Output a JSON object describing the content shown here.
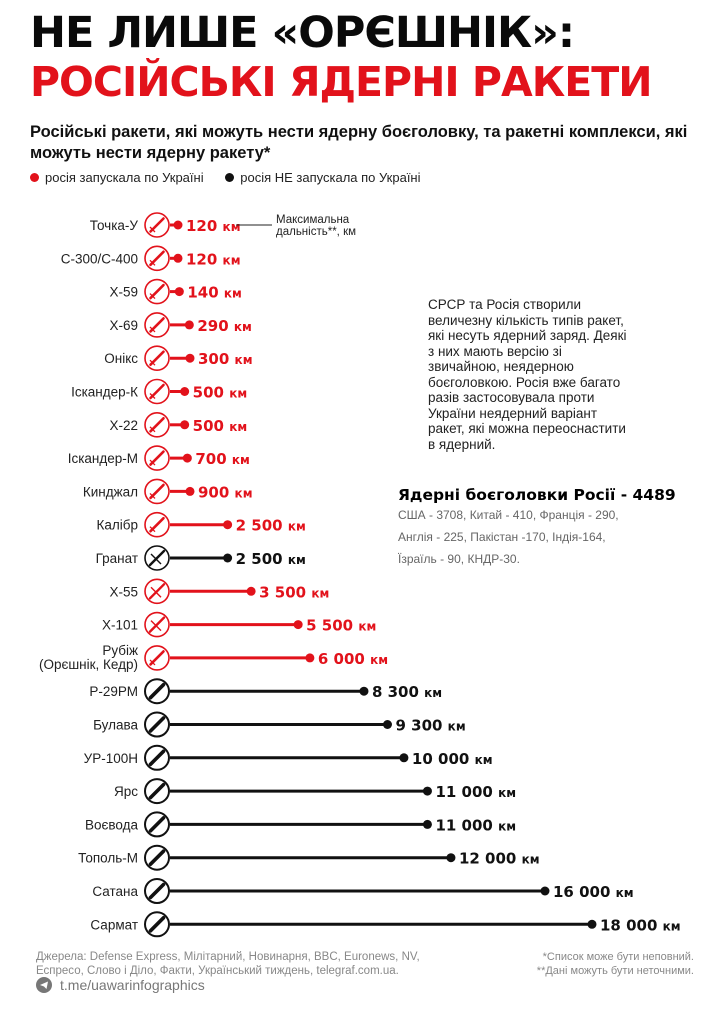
{
  "header": {
    "title_line1": "НЕ ЛИШЕ «ОРЄШНІК»:",
    "title_line2": "РОСІЙСЬКІ ЯДЕРНІ РАКЕТИ",
    "subtitle": "Російські ракети, які можуть нести ядерну боєголовку, та ракетні комплекси, які можуть нести ядерну ракету*"
  },
  "legend": {
    "launched": "росія запускала по Україні",
    "not_launched": "росія НЕ запускала по Україні"
  },
  "colors": {
    "launched": "#e2121b",
    "not_launched": "#111111",
    "muted": "#888888"
  },
  "note": "СРСР та Росія створили величезну кількість типів ракет, які несуть ядерний заряд. Деякі з них мають версію зі звичайною, неядерною боєголовкою. Росія вже багато разів застосовувала проти України неядерний варіант ракет, які можна переоснастити в ядерний.",
  "warheads": {
    "title": "Ядерні боєголовки Росії - 4489",
    "lines": [
      "США - 3708, Китай - 410, Франція - 290,",
      "Англія - 225, Пакістан -170, Індія-164,",
      "Їзраїль - 90,  КНДР-30."
    ]
  },
  "chart_data": {
    "type": "bar",
    "title": "Російські ракети, які можуть нести ядерну боєголовку, та ракетні комплекси, які можуть нести ядерну ракету*",
    "annotation": "Максимальна дальність**, км",
    "unit": "км",
    "xlim": [
      0,
      18000
    ],
    "items": [
      {
        "name": "Точка-У",
        "value": 120,
        "label": "120 км",
        "launched": true,
        "icon": "missile-icon"
      },
      {
        "name": "С-300/С-400",
        "value": 120,
        "label": "120 км",
        "launched": true,
        "icon": "missile-icon"
      },
      {
        "name": "Х-59",
        "value": 140,
        "label": "140 км",
        "launched": true,
        "icon": "missile-icon"
      },
      {
        "name": "Х-69",
        "value": 290,
        "label": "290 км",
        "launched": true,
        "icon": "missile-icon"
      },
      {
        "name": "Онікс",
        "value": 300,
        "label": "300 км",
        "launched": true,
        "icon": "missile-icon"
      },
      {
        "name": "Іскандер-К",
        "value": 500,
        "label": "500 км",
        "launched": true,
        "icon": "missile-icon"
      },
      {
        "name": "Х-22",
        "value": 500,
        "label": "500 км",
        "launched": true,
        "icon": "missile-icon"
      },
      {
        "name": "Іскандер-М",
        "value": 700,
        "label": "700 км",
        "launched": true,
        "icon": "missile-icon"
      },
      {
        "name": "Кинджал",
        "value": 900,
        "label": "900 км",
        "launched": true,
        "icon": "missile-icon"
      },
      {
        "name": "Калібр",
        "value": 2500,
        "label": "2 500 км",
        "launched": true,
        "icon": "missile-icon"
      },
      {
        "name": "Гранат",
        "value": 2500,
        "label": "2 500 км",
        "launched": false,
        "icon": "cruise-missile-icon"
      },
      {
        "name": "Х-55",
        "value": 3500,
        "label": "3 500 км",
        "launched": true,
        "icon": "cruise-missile-icon"
      },
      {
        "name": "Х-101",
        "value": 5500,
        "label": "5 500 км",
        "launched": true,
        "icon": "cruise-missile-icon"
      },
      {
        "name": "Рубіж\n(Орєшнік, Кедр)",
        "value": 6000,
        "label": "6 000 км",
        "launched": true,
        "icon": "missile-icon"
      },
      {
        "name": "Р-29РМ",
        "value": 8300,
        "label": "8 300 км",
        "launched": false,
        "icon": "ballistic-missile-icon"
      },
      {
        "name": "Булава",
        "value": 9300,
        "label": "9 300 км",
        "launched": false,
        "icon": "ballistic-missile-icon"
      },
      {
        "name": "УР-100Н",
        "value": 10000,
        "label": "10 000 км",
        "launched": false,
        "icon": "ballistic-missile-icon"
      },
      {
        "name": "Ярс",
        "value": 11000,
        "label": "11 000 км",
        "launched": false,
        "icon": "ballistic-missile-icon"
      },
      {
        "name": "Воєвода",
        "value": 11000,
        "label": "11 000 км",
        "launched": false,
        "icon": "ballistic-missile-icon"
      },
      {
        "name": "Тополь-М",
        "value": 12000,
        "label": "12 000 км",
        "launched": false,
        "icon": "ballistic-missile-icon"
      },
      {
        "name": "Сатана",
        "value": 16000,
        "label": "16 000 км",
        "launched": false,
        "icon": "ballistic-missile-icon"
      },
      {
        "name": "Сармат",
        "value": 18000,
        "label": "18 000 км",
        "launched": false,
        "icon": "ballistic-missile-icon"
      }
    ]
  },
  "footer": {
    "sources": "Джерела: Defense Express, Мілітарний, Новинарня, BBC, Euronews, NV, Еспресо, Слово і Діло, Факти, Український тиждень, telegraf.com.ua.",
    "note1": "*Список може бути неповний.",
    "note2": "**Дані можуть бути неточними.",
    "telegram": "t.me/uawarinfographics"
  }
}
